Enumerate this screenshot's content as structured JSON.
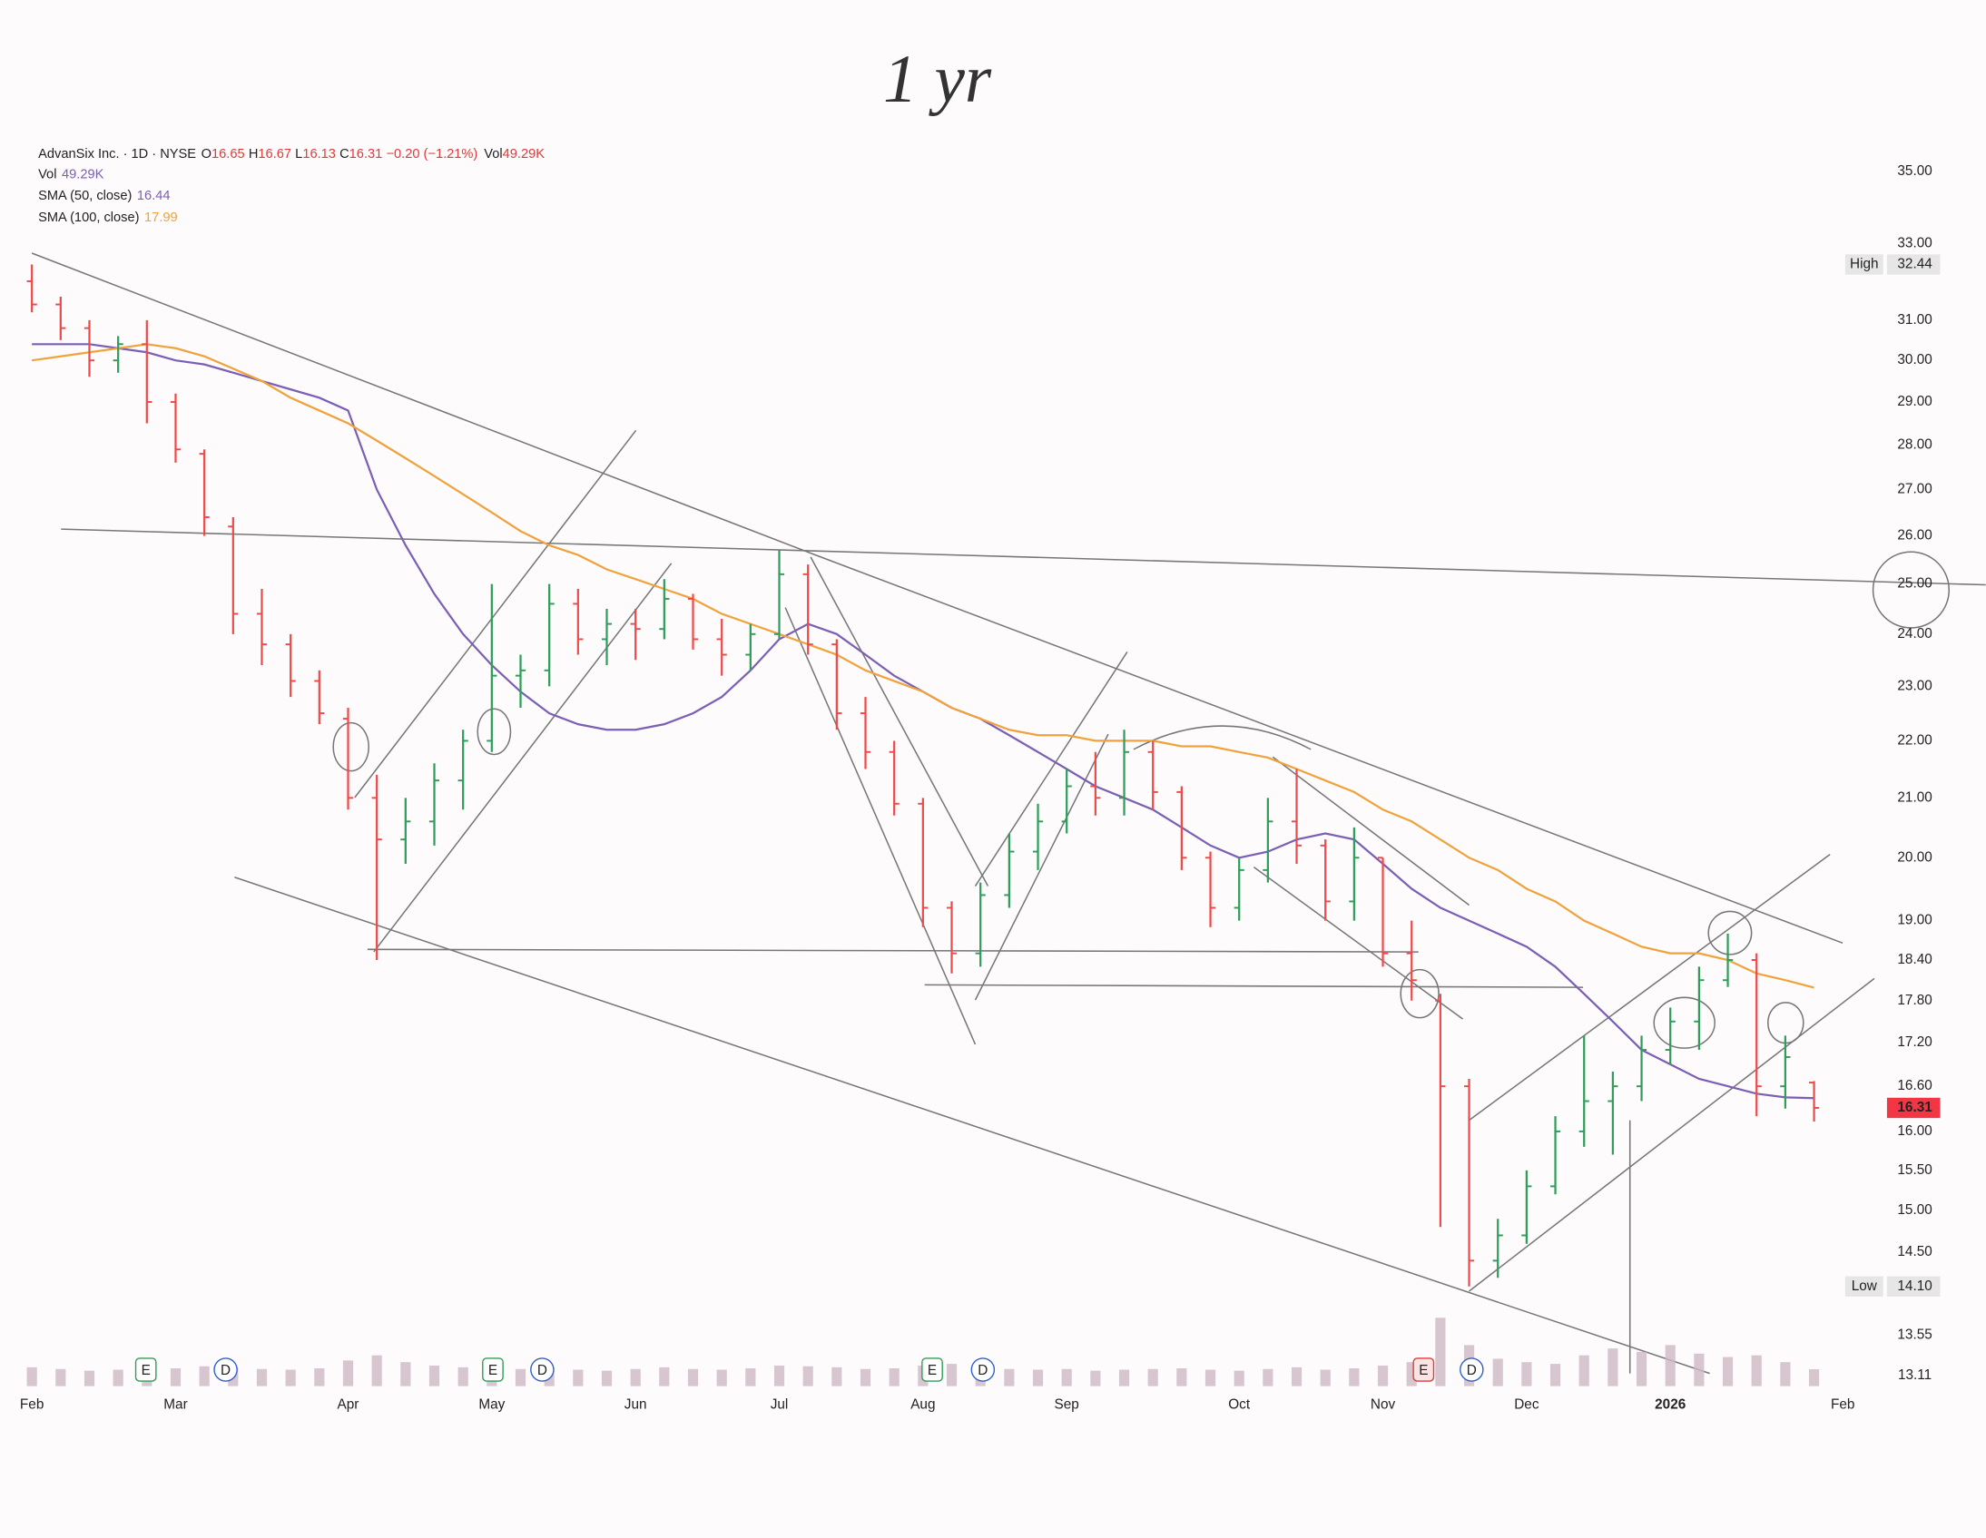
{
  "chart_data": {
    "type": "ohlc",
    "annotation": "1 yr",
    "legend": {
      "symbol": "AdvanSix Inc. · 1D · NYSE",
      "ohlc": [
        {
          "key": "O",
          "value": "16.65"
        },
        {
          "key": "H",
          "value": "16.67"
        },
        {
          "key": "L",
          "value": "16.13"
        },
        {
          "key": "C",
          "value": "16.31"
        }
      ],
      "change": "−0.20 (−1.21%)",
      "vol_key": "Vol",
      "vol_value": "49.29K",
      "vol_line_key": "Vol",
      "vol_line_value": "49.29K"
    },
    "categories": [
      "Feb",
      null,
      null,
      null,
      null,
      "Mar",
      null,
      null,
      null,
      null,
      null,
      "Apr",
      null,
      null,
      null,
      null,
      "May",
      null,
      null,
      null,
      null,
      "Jun",
      null,
      null,
      null,
      null,
      "Jul",
      null,
      null,
      null,
      null,
      "Aug",
      null,
      null,
      null,
      null,
      "Sep",
      null,
      null,
      null,
      null,
      null,
      "Oct",
      null,
      null,
      null,
      null,
      "Nov",
      null,
      null,
      null,
      null,
      "Dec",
      null,
      null,
      null,
      null,
      "2026",
      null,
      null,
      null,
      null,
      null,
      "Feb"
    ],
    "open": [
      32.0,
      31.4,
      30.8,
      30.0,
      30.4,
      29.0,
      27.8,
      26.2,
      24.4,
      23.8,
      23.1,
      22.4,
      21.0,
      20.3,
      20.6,
      21.3,
      22.0,
      23.2,
      23.3,
      24.6,
      23.9,
      24.2,
      24.1,
      24.7,
      23.9,
      23.6,
      24.0,
      25.2,
      23.8,
      22.5,
      21.8,
      20.9,
      19.2,
      18.5,
      19.4,
      20.1,
      20.6,
      21.2,
      21.0,
      21.8,
      21.1,
      20.0,
      19.2,
      19.8,
      20.6,
      20.2,
      19.3,
      20.0,
      18.5,
      17.8,
      16.6,
      14.4,
      14.7,
      15.3,
      16.0,
      16.4,
      16.6,
      17.1,
      17.5,
      18.1,
      18.4,
      16.6,
      16.65,
      null
    ],
    "high": [
      32.44,
      31.6,
      31.0,
      30.6,
      31.0,
      29.2,
      27.9,
      26.4,
      24.9,
      24.0,
      23.3,
      22.6,
      21.4,
      21.0,
      21.6,
      22.2,
      25.0,
      23.6,
      25.0,
      24.9,
      24.5,
      24.5,
      25.1,
      24.8,
      24.3,
      24.2,
      25.7,
      25.4,
      23.9,
      22.8,
      22.0,
      21.0,
      19.3,
      19.6,
      20.4,
      20.9,
      21.5,
      21.8,
      22.2,
      22.0,
      21.2,
      20.1,
      20.0,
      21.0,
      21.5,
      20.3,
      20.5,
      20.0,
      19.0,
      17.9,
      16.7,
      14.9,
      15.5,
      16.2,
      17.3,
      16.8,
      17.3,
      17.7,
      18.3,
      18.8,
      18.5,
      17.3,
      16.67,
      null
    ],
    "low": [
      31.2,
      30.5,
      29.6,
      29.7,
      28.5,
      27.6,
      26.0,
      24.0,
      23.4,
      22.8,
      22.3,
      20.8,
      18.4,
      19.9,
      20.2,
      20.8,
      21.8,
      22.6,
      23.0,
      23.6,
      23.4,
      23.5,
      23.9,
      23.7,
      23.2,
      23.3,
      23.9,
      23.6,
      22.2,
      21.5,
      20.7,
      18.9,
      18.2,
      18.3,
      19.2,
      19.8,
      20.4,
      20.7,
      20.7,
      20.8,
      19.8,
      18.9,
      19.0,
      19.6,
      19.9,
      19.0,
      19.0,
      18.3,
      17.8,
      14.8,
      14.1,
      14.2,
      14.6,
      15.2,
      15.8,
      15.7,
      16.4,
      16.9,
      17.1,
      18.0,
      16.2,
      16.3,
      16.13,
      null
    ],
    "close": [
      31.4,
      30.8,
      30.0,
      30.4,
      29.0,
      27.9,
      26.4,
      24.4,
      23.8,
      23.1,
      22.5,
      21.0,
      20.3,
      20.6,
      21.3,
      22.0,
      23.2,
      23.3,
      24.6,
      23.9,
      24.2,
      24.1,
      24.7,
      23.9,
      23.6,
      24.0,
      25.2,
      23.8,
      22.5,
      21.8,
      20.9,
      19.2,
      18.5,
      19.4,
      20.1,
      20.6,
      21.2,
      21.0,
      21.8,
      21.1,
      20.0,
      19.2,
      19.8,
      20.6,
      20.2,
      19.3,
      20.0,
      18.5,
      18.1,
      16.6,
      14.4,
      14.7,
      15.3,
      16.0,
      16.4,
      16.6,
      17.1,
      17.5,
      18.1,
      18.4,
      16.6,
      17.0,
      16.31,
      null
    ],
    "up_color": "#2e9e5a",
    "down_color": "#ef4a4a",
    "volume": {
      "color": "#cdb8c4",
      "values": [
        55,
        50,
        45,
        48,
        60,
        52,
        58,
        55,
        50,
        48,
        52,
        75,
        90,
        70,
        60,
        55,
        65,
        50,
        55,
        48,
        45,
        50,
        55,
        50,
        48,
        52,
        60,
        58,
        55,
        50,
        52,
        60,
        65,
        55,
        50,
        48,
        50,
        45,
        48,
        50,
        52,
        48,
        45,
        50,
        55,
        48,
        52,
        60,
        70,
        200,
        120,
        80,
        70,
        65,
        90,
        110,
        100,
        120,
        95,
        85,
        90,
        70,
        49.29,
        null
      ]
    },
    "series": [
      {
        "name": "SMA (50, close)",
        "color": "#7b5fb5",
        "values": [
          30.4,
          30.4,
          30.4,
          30.3,
          30.2,
          30.0,
          29.9,
          29.7,
          29.5,
          29.3,
          29.1,
          28.8,
          27.0,
          25.8,
          24.8,
          24.0,
          23.4,
          22.9,
          22.5,
          22.3,
          22.2,
          22.2,
          22.3,
          22.5,
          22.8,
          23.3,
          23.9,
          24.2,
          24.0,
          23.6,
          23.2,
          22.9,
          22.6,
          22.4,
          22.1,
          21.8,
          21.5,
          21.2,
          21.0,
          20.8,
          20.5,
          20.2,
          20.0,
          20.1,
          20.3,
          20.4,
          20.3,
          19.9,
          19.5,
          19.2,
          19.0,
          18.8,
          18.6,
          18.3,
          17.9,
          17.5,
          17.1,
          16.9,
          16.7,
          16.6,
          16.5,
          16.45,
          16.44,
          null
        ]
      },
      {
        "name": "SMA (100, close)",
        "color": "#f0a23c",
        "values": [
          30.0,
          30.1,
          30.2,
          30.3,
          30.4,
          30.3,
          30.1,
          29.8,
          29.5,
          29.1,
          28.8,
          28.5,
          28.1,
          27.7,
          27.3,
          26.9,
          26.5,
          26.1,
          25.8,
          25.6,
          25.3,
          25.1,
          24.9,
          24.7,
          24.4,
          24.2,
          24.0,
          23.8,
          23.6,
          23.3,
          23.1,
          22.9,
          22.6,
          22.4,
          22.2,
          22.1,
          22.1,
          22.0,
          22.0,
          22.0,
          21.9,
          21.9,
          21.8,
          21.7,
          21.5,
          21.3,
          21.1,
          20.8,
          20.6,
          20.3,
          20.0,
          19.8,
          19.5,
          19.3,
          19.0,
          18.8,
          18.6,
          18.5,
          18.5,
          18.4,
          18.2,
          18.1,
          17.99,
          null
        ]
      }
    ],
    "ylim": [
      13,
      36.3
    ],
    "log_scale": true,
    "yticks": [
      {
        "value": 35,
        "label": "35.00"
      },
      {
        "value": 33,
        "label": "33.00"
      },
      {
        "value": 31,
        "label": "31.00"
      },
      {
        "value": 30,
        "label": "30.00"
      },
      {
        "value": 29,
        "label": "29.00"
      },
      {
        "value": 28,
        "label": "28.00"
      },
      {
        "value": 27,
        "label": "27.00"
      },
      {
        "value": 26,
        "label": "26.00"
      },
      {
        "value": 25,
        "label": "25.00"
      },
      {
        "value": 24,
        "label": "24.00"
      },
      {
        "value": 23,
        "label": "23.00"
      },
      {
        "value": 22,
        "label": "22.00"
      },
      {
        "value": 21,
        "label": "21.00"
      },
      {
        "value": 20,
        "label": "20.00"
      },
      {
        "value": 19,
        "label": "19.00"
      },
      {
        "value": 18.4,
        "label": "18.40"
      },
      {
        "value": 17.8,
        "label": "17.80"
      },
      {
        "value": 17.2,
        "label": "17.20"
      },
      {
        "value": 16.6,
        "label": "16.60"
      },
      {
        "value": 16,
        "label": "16.00"
      },
      {
        "value": 15.5,
        "label": "15.50"
      },
      {
        "value": 15,
        "label": "15.00"
      },
      {
        "value": 14.5,
        "label": "14.50"
      },
      {
        "value": 13.55,
        "label": "13.55"
      },
      {
        "value": 13.11,
        "label": "13.11"
      }
    ],
    "grid": false,
    "price_tags": [
      {
        "name": "High",
        "value": 32.44,
        "value_label": "32.44",
        "color": "#e6e6e6"
      },
      {
        "name": "Low",
        "value": 14.1,
        "value_label": "14.10",
        "color": "#e6e6e6"
      },
      {
        "value": 16.31,
        "value_label": "16.31",
        "color": "#f23645"
      }
    ],
    "events": [
      {
        "label": "E",
        "color": "#2e9e5a"
      },
      {
        "label": "D",
        "color": "#2f5fd0"
      },
      {
        "label": "E",
        "color": "#2e9e5a"
      },
      {
        "label": "D",
        "color": "#2f5fd0"
      },
      {
        "label": "E",
        "color": "#2e9e5a"
      },
      {
        "label": "D",
        "color": "#2f5fd0"
      },
      {
        "label": "E",
        "color": "#e03a3a"
      },
      {
        "label": "D",
        "color": "#2f5fd0"
      }
    ]
  }
}
